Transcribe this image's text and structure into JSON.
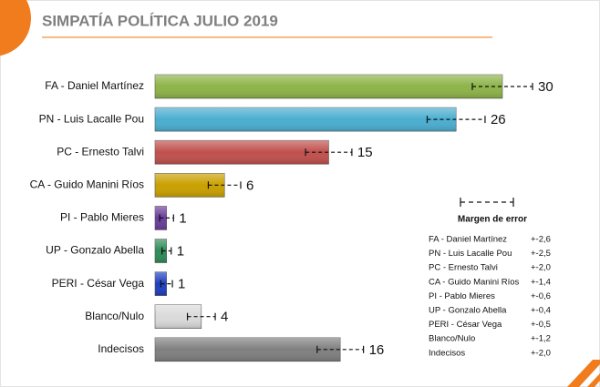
{
  "chart_data": {
    "type": "bar",
    "title": "SIMPATÍA POLÍTICA JULIO 2019",
    "categories": [
      "FA - Daniel Martínez",
      "PN - Luis Lacalle Pou",
      "PC - Ernesto Talvi",
      "CA - Guido Manini Ríos",
      "PI - Pablo Mieres",
      "UP - Gonzalo Abella",
      "PERI - César Vega",
      "Blanco/Nulo",
      "Indecisos"
    ],
    "values": [
      30,
      26,
      15,
      6,
      1,
      1,
      1,
      4,
      16
    ],
    "colors": [
      "#8db348",
      "#4aaed0",
      "#c0504d",
      "#c9a000",
      "#6a3d9a",
      "#2e8b57",
      "#1f3fbf",
      "#dadada",
      "#7f7f7f"
    ],
    "errors": [
      2.6,
      2.5,
      2.0,
      1.4,
      0.6,
      0.4,
      0.5,
      1.2,
      2.0
    ],
    "error_labels": [
      "+-2,6",
      "+-2,5",
      "+-2,0",
      "+-1,4",
      "+-0,6",
      "+-0,4",
      "+-0,5",
      "+-1,2",
      "+-2,0"
    ],
    "error_legend_title": "Margen de error"
  }
}
